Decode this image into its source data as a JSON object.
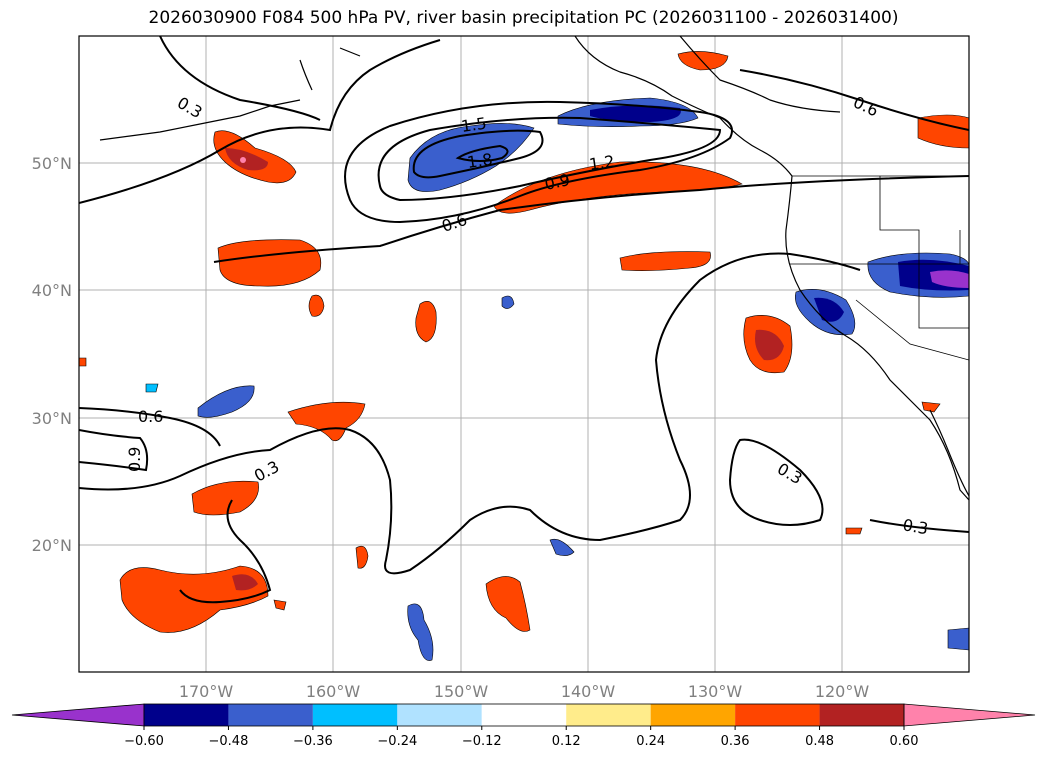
{
  "title": "2026030900 F084 500 hPa PV, river basin precipitation PC (2026031100 - 2026031400)",
  "lon_ticks": [
    "170°W",
    "160°W",
    "150°W",
    "140°W",
    "130°W",
    "120°W"
  ],
  "lat_ticks": [
    "50°N",
    "40°N",
    "30°N",
    "20°N"
  ],
  "contour_labels": [
    "0.3",
    "0.6",
    "0.9",
    "1.2",
    "1.5",
    "1.8"
  ],
  "colorbar": {
    "ticks": [
      "−0.60",
      "−0.48",
      "−0.36",
      "−0.24",
      "−0.12",
      "0.12",
      "0.24",
      "0.36",
      "0.48",
      "0.60"
    ],
    "colors": [
      "#9932cc",
      "#00008b",
      "#3a5fcd",
      "#00bfff",
      "#b0e2ff",
      "#ffffff",
      "#ffec8b",
      "#ffa500",
      "#ff4500",
      "#b22222",
      "#ff82ab"
    ]
  },
  "colors": {
    "neg_strong": "#00008b",
    "neg_mid": "#3a5fcd",
    "neg_weak": "#00bfff",
    "pos_weak": "#ffa500",
    "pos_mid": "#ff4500",
    "pos_strong": "#b22222",
    "pos_max": "#ff82ab",
    "neg_max": "#9932cc"
  }
}
